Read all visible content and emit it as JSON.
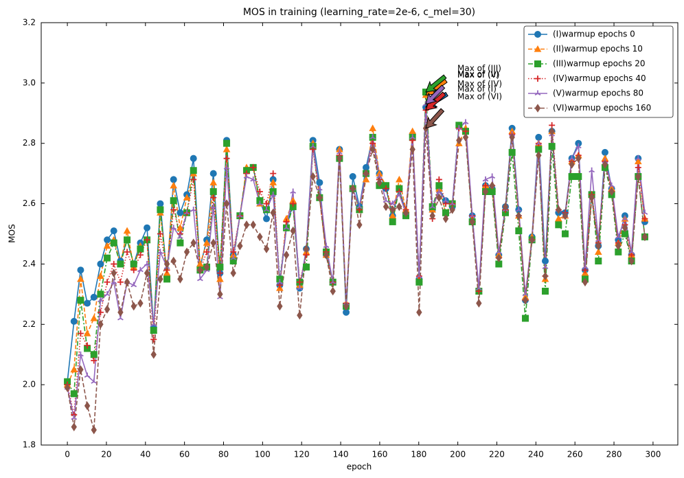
{
  "chart_data": {
    "type": "line",
    "title": "MOS in training (learning_rate=2e-6, c_mel=30)",
    "x_label": "epoch",
    "y_label": "MOS",
    "x": [
      0,
      3.4,
      6.8,
      10.2,
      13.6,
      17,
      20.4,
      23.8,
      27.2,
      30.6,
      34,
      37.4,
      40.8,
      44.2,
      47.6,
      51,
      54.4,
      57.8,
      61.2,
      64.6,
      68,
      71.4,
      74.8,
      78.2,
      81.6,
      85,
      88.4,
      91.8,
      95.2,
      98.6,
      102,
      105.4,
      108.8,
      112.2,
      115.6,
      119,
      122.4,
      125.8,
      129.2,
      132.6,
      136,
      139.4,
      142.8,
      146.2,
      149.6,
      153,
      156.4,
      159.8,
      163.2,
      166.6,
      170,
      173.4,
      176.8,
      180.2,
      183.6,
      187,
      190.4,
      193.8,
      197.2,
      200.6,
      204,
      207.4,
      210.8,
      214.2,
      217.6,
      221,
      224.4,
      227.8,
      231.2,
      234.6,
      238,
      241.4,
      244.8,
      248.2,
      251.6,
      255,
      258.4,
      261.8,
      265.2,
      268.6,
      272,
      275.4,
      278.8,
      282.2,
      285.6,
      289,
      292.4,
      295.8
    ],
    "series": [
      {
        "name": "(I)warmup epochs 0",
        "color": "#1f77b4",
        "marker": "circle",
        "linestyle": "solid",
        "values": [
          2.01,
          2.21,
          2.38,
          2.27,
          2.29,
          2.4,
          2.48,
          2.51,
          2.41,
          2.48,
          2.4,
          2.47,
          2.52,
          2.19,
          2.6,
          2.36,
          2.68,
          2.57,
          2.63,
          2.75,
          2.39,
          2.48,
          2.7,
          2.37,
          2.81,
          2.43,
          2.56,
          2.71,
          2.72,
          2.61,
          2.55,
          2.68,
          2.33,
          2.52,
          2.6,
          2.32,
          2.45,
          2.81,
          2.67,
          2.43,
          2.34,
          2.78,
          2.24,
          2.69,
          2.59,
          2.72,
          2.82,
          2.7,
          2.65,
          2.56,
          2.65,
          2.57,
          2.83,
          2.35,
          2.92,
          2.58,
          2.65,
          2.61,
          2.59,
          2.86,
          2.84,
          2.56,
          2.31,
          2.66,
          2.65,
          2.43,
          2.59,
          2.85,
          2.58,
          2.28,
          2.49,
          2.82,
          2.41,
          2.84,
          2.57,
          2.57,
          2.75,
          2.8,
          2.38,
          2.63,
          2.46,
          2.77,
          2.65,
          2.48,
          2.56,
          2.43,
          2.75,
          2.54
        ]
      },
      {
        "name": "(II)warmup epochs 10",
        "color": "#ff7f0e",
        "marker": "triangle",
        "linestyle": "dashed",
        "values": [
          2.0,
          2.05,
          2.35,
          2.17,
          2.22,
          2.36,
          2.46,
          2.48,
          2.4,
          2.51,
          2.39,
          2.46,
          2.48,
          2.18,
          2.57,
          2.37,
          2.66,
          2.52,
          2.62,
          2.7,
          2.4,
          2.47,
          2.67,
          2.35,
          2.78,
          2.43,
          2.56,
          2.72,
          2.72,
          2.6,
          2.58,
          2.67,
          2.32,
          2.55,
          2.61,
          2.33,
          2.44,
          2.8,
          2.62,
          2.43,
          2.34,
          2.78,
          2.27,
          2.65,
          2.58,
          2.68,
          2.85,
          2.7,
          2.66,
          2.56,
          2.68,
          2.58,
          2.84,
          2.35,
          2.96,
          2.58,
          2.65,
          2.57,
          2.6,
          2.8,
          2.85,
          2.55,
          2.31,
          2.66,
          2.65,
          2.43,
          2.58,
          2.84,
          2.56,
          2.29,
          2.49,
          2.8,
          2.35,
          2.84,
          2.55,
          2.56,
          2.74,
          2.76,
          2.37,
          2.63,
          2.44,
          2.75,
          2.65,
          2.47,
          2.55,
          2.43,
          2.74,
          2.55
        ]
      },
      {
        "name": "(III)warmup epochs 20",
        "color": "#2ca02c",
        "marker": "square",
        "linestyle": "dashdot",
        "values": [
          2.01,
          1.97,
          2.28,
          2.12,
          2.1,
          2.3,
          2.42,
          2.47,
          2.4,
          2.48,
          2.4,
          2.45,
          2.48,
          2.18,
          2.58,
          2.35,
          2.61,
          2.47,
          2.57,
          2.71,
          2.38,
          2.39,
          2.64,
          2.39,
          2.8,
          2.41,
          2.56,
          2.71,
          2.72,
          2.61,
          2.58,
          2.64,
          2.35,
          2.52,
          2.59,
          2.34,
          2.39,
          2.79,
          2.62,
          2.44,
          2.34,
          2.75,
          2.26,
          2.65,
          2.58,
          2.7,
          2.82,
          2.66,
          2.66,
          2.54,
          2.65,
          2.56,
          2.82,
          2.34,
          2.97,
          2.59,
          2.66,
          2.57,
          2.6,
          2.86,
          2.84,
          2.54,
          2.31,
          2.64,
          2.64,
          2.4,
          2.57,
          2.77,
          2.51,
          2.22,
          2.48,
          2.78,
          2.31,
          2.79,
          2.53,
          2.5,
          2.69,
          2.69,
          2.35,
          2.63,
          2.41,
          2.72,
          2.63,
          2.44,
          2.5,
          2.41,
          2.69,
          2.49
        ]
      },
      {
        "name": "(IV)warmup epochs 40",
        "color": "#d62728",
        "marker": "plus",
        "linestyle": "dotted",
        "values": [
          2.0,
          1.9,
          2.17,
          2.13,
          2.08,
          2.24,
          2.34,
          2.4,
          2.34,
          2.44,
          2.38,
          2.43,
          2.48,
          2.15,
          2.5,
          2.38,
          2.58,
          2.5,
          2.57,
          2.68,
          2.38,
          2.44,
          2.62,
          2.37,
          2.75,
          2.44,
          2.56,
          2.7,
          2.72,
          2.64,
          2.6,
          2.7,
          2.33,
          2.54,
          2.6,
          2.34,
          2.43,
          2.78,
          2.62,
          2.44,
          2.34,
          2.76,
          2.27,
          2.65,
          2.58,
          2.7,
          2.8,
          2.68,
          2.65,
          2.58,
          2.64,
          2.58,
          2.81,
          2.36,
          2.91,
          2.55,
          2.68,
          2.6,
          2.6,
          2.85,
          2.84,
          2.56,
          2.31,
          2.66,
          2.66,
          2.42,
          2.58,
          2.83,
          2.56,
          2.28,
          2.48,
          2.8,
          2.36,
          2.86,
          2.58,
          2.57,
          2.74,
          2.76,
          2.38,
          2.63,
          2.47,
          2.74,
          2.64,
          2.47,
          2.53,
          2.43,
          2.72,
          2.55
        ]
      },
      {
        "name": "(V)warmup epochs 80",
        "color": "#9467bd",
        "marker": "tri",
        "linestyle": "solid",
        "values": [
          1.99,
          1.89,
          2.1,
          2.03,
          2.01,
          2.28,
          2.3,
          2.34,
          2.22,
          2.34,
          2.33,
          2.38,
          2.4,
          2.2,
          2.44,
          2.39,
          2.52,
          2.49,
          2.57,
          2.58,
          2.35,
          2.38,
          2.59,
          2.29,
          2.72,
          2.42,
          2.56,
          2.69,
          2.68,
          2.6,
          2.58,
          2.63,
          2.34,
          2.52,
          2.64,
          2.32,
          2.45,
          2.79,
          2.65,
          2.46,
          2.34,
          2.77,
          2.27,
          2.65,
          2.59,
          2.7,
          2.82,
          2.69,
          2.61,
          2.6,
          2.63,
          2.57,
          2.82,
          2.36,
          2.93,
          2.59,
          2.64,
          2.61,
          2.6,
          2.85,
          2.87,
          2.56,
          2.32,
          2.68,
          2.69,
          2.44,
          2.58,
          2.83,
          2.58,
          2.3,
          2.48,
          2.8,
          2.39,
          2.83,
          2.58,
          2.56,
          2.75,
          2.79,
          2.39,
          2.71,
          2.48,
          2.74,
          2.66,
          2.49,
          2.55,
          2.44,
          2.75,
          2.57
        ]
      },
      {
        "name": "(VI)warmup epochs 160",
        "color": "#8c564b",
        "marker": "diamond",
        "linestyle": "dashed",
        "values": [
          1.99,
          1.86,
          2.05,
          1.93,
          1.85,
          2.2,
          2.25,
          2.37,
          2.24,
          2.34,
          2.26,
          2.27,
          2.37,
          2.1,
          2.35,
          2.4,
          2.41,
          2.35,
          2.44,
          2.47,
          2.38,
          2.39,
          2.47,
          2.3,
          2.6,
          2.37,
          2.46,
          2.53,
          2.53,
          2.49,
          2.45,
          2.57,
          2.26,
          2.43,
          2.51,
          2.23,
          2.45,
          2.69,
          2.62,
          2.43,
          2.31,
          2.75,
          2.26,
          2.65,
          2.53,
          2.7,
          2.78,
          2.67,
          2.59,
          2.58,
          2.59,
          2.57,
          2.78,
          2.24,
          2.85,
          2.56,
          2.62,
          2.55,
          2.58,
          2.81,
          2.82,
          2.54,
          2.27,
          2.64,
          2.66,
          2.42,
          2.59,
          2.82,
          2.56,
          2.28,
          2.48,
          2.76,
          2.36,
          2.84,
          2.58,
          2.56,
          2.73,
          2.75,
          2.34,
          2.62,
          2.46,
          2.73,
          2.64,
          2.46,
          2.52,
          2.41,
          2.69,
          2.49
        ]
      }
    ],
    "annotations": [
      "Max of (I)",
      "Max of (II)",
      "Max of (III)",
      "Max of (IV)",
      "Max of (V)",
      "Max of (VI)"
    ],
    "xlim": [
      -13.4,
      312.7
    ],
    "xticks": [
      0,
      20,
      40,
      60,
      80,
      100,
      120,
      140,
      160,
      180,
      200,
      220,
      240,
      260,
      280,
      300
    ],
    "ylim": [
      1.8,
      3.2
    ],
    "yticks": [
      1.8,
      {
        "value": 2,
        "label": "2.0"
      },
      2.2,
      2.4,
      2.6,
      2.8,
      {
        "value": 3,
        "label": "3.0"
      },
      3.2
    ],
    "legend": "upper right",
    "grid": false
  }
}
